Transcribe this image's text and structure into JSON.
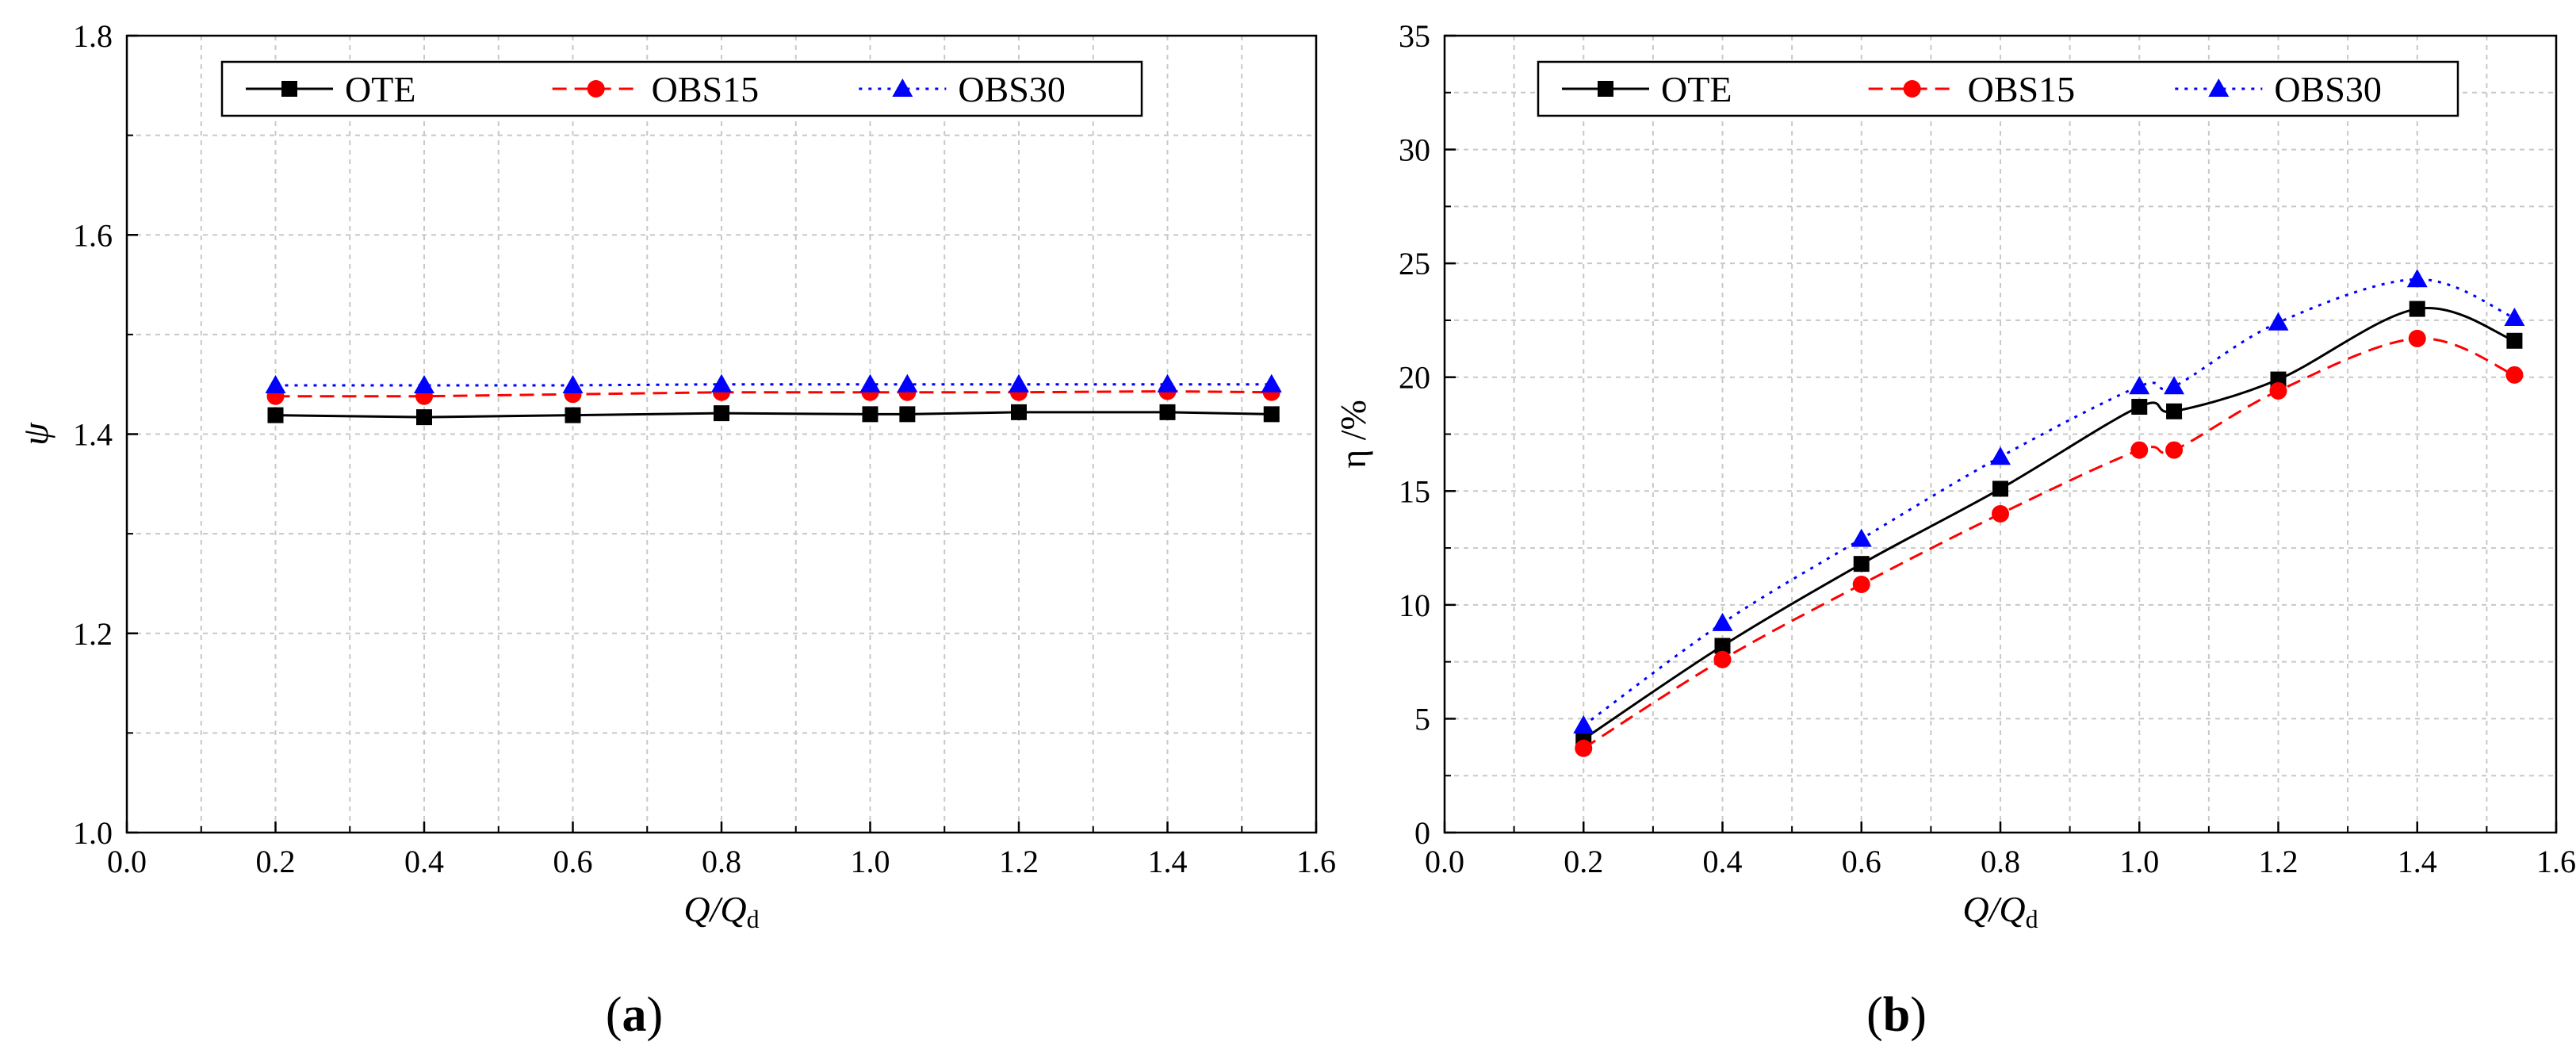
{
  "chart_data": [
    {
      "type": "line",
      "panel_label": "(a)",
      "panel_letter": "a",
      "xlabel": {
        "main": "Q/Q",
        "sub": "d"
      },
      "ylabel": "ψ",
      "xlim": [
        0.0,
        1.6
      ],
      "ylim": [
        1.0,
        1.8
      ],
      "x_ticks": [
        "0.0",
        "0.2",
        "0.4",
        "0.6",
        "0.8",
        "1.0",
        "1.2",
        "1.4",
        "1.6"
      ],
      "y_ticks": [
        "1.0",
        "1.2",
        "1.4",
        "1.6",
        "1.8"
      ],
      "grid": true,
      "legend_position": "top-center",
      "x": [
        0.2,
        0.4,
        0.6,
        0.8,
        1.0,
        1.05,
        1.2,
        1.4,
        1.54
      ],
      "series": [
        {
          "name": "OTE",
          "marker": "square",
          "line": "solid",
          "color": "#000000",
          "values": [
            1.419,
            1.417,
            1.419,
            1.421,
            1.42,
            1.42,
            1.422,
            1.422,
            1.42
          ]
        },
        {
          "name": "OBS15",
          "marker": "circle",
          "line": "dashed",
          "color": "#ff0000",
          "values": [
            1.438,
            1.438,
            1.44,
            1.442,
            1.442,
            1.442,
            1.442,
            1.443,
            1.442
          ]
        },
        {
          "name": "OBS30",
          "marker": "triangle",
          "line": "dotted",
          "color": "#0000ff",
          "values": [
            1.449,
            1.449,
            1.449,
            1.45,
            1.45,
            1.45,
            1.45,
            1.45,
            1.45
          ]
        }
      ]
    },
    {
      "type": "line",
      "panel_label": "(b)",
      "panel_letter": "b",
      "xlabel": {
        "main": "Q/Q",
        "sub": "d"
      },
      "ylabel": "η /%",
      "xlim": [
        0.0,
        1.6
      ],
      "ylim": [
        0,
        35
      ],
      "x_ticks": [
        "0.0",
        "0.2",
        "0.4",
        "0.6",
        "0.8",
        "1.0",
        "1.2",
        "1.4",
        "1.6"
      ],
      "y_ticks": [
        "0",
        "5",
        "10",
        "15",
        "20",
        "25",
        "30",
        "35"
      ],
      "grid": true,
      "legend_position": "top-center",
      "x": [
        0.2,
        0.4,
        0.6,
        0.8,
        1.0,
        1.05,
        1.2,
        1.4,
        1.54
      ],
      "series": [
        {
          "name": "OTE",
          "marker": "square",
          "line": "solid",
          "color": "#000000",
          "values": [
            4.1,
            8.2,
            11.8,
            15.1,
            18.7,
            18.5,
            19.9,
            23.0,
            21.6
          ]
        },
        {
          "name": "OBS15",
          "marker": "circle",
          "line": "dashed",
          "color": "#ff0000",
          "values": [
            3.7,
            7.6,
            10.9,
            14.0,
            16.8,
            16.8,
            19.4,
            21.7,
            20.1
          ]
        },
        {
          "name": "OBS30",
          "marker": "triangle",
          "line": "dotted",
          "color": "#0000ff",
          "values": [
            4.7,
            9.2,
            12.9,
            16.5,
            19.6,
            19.6,
            22.4,
            24.3,
            22.6
          ]
        }
      ]
    }
  ]
}
